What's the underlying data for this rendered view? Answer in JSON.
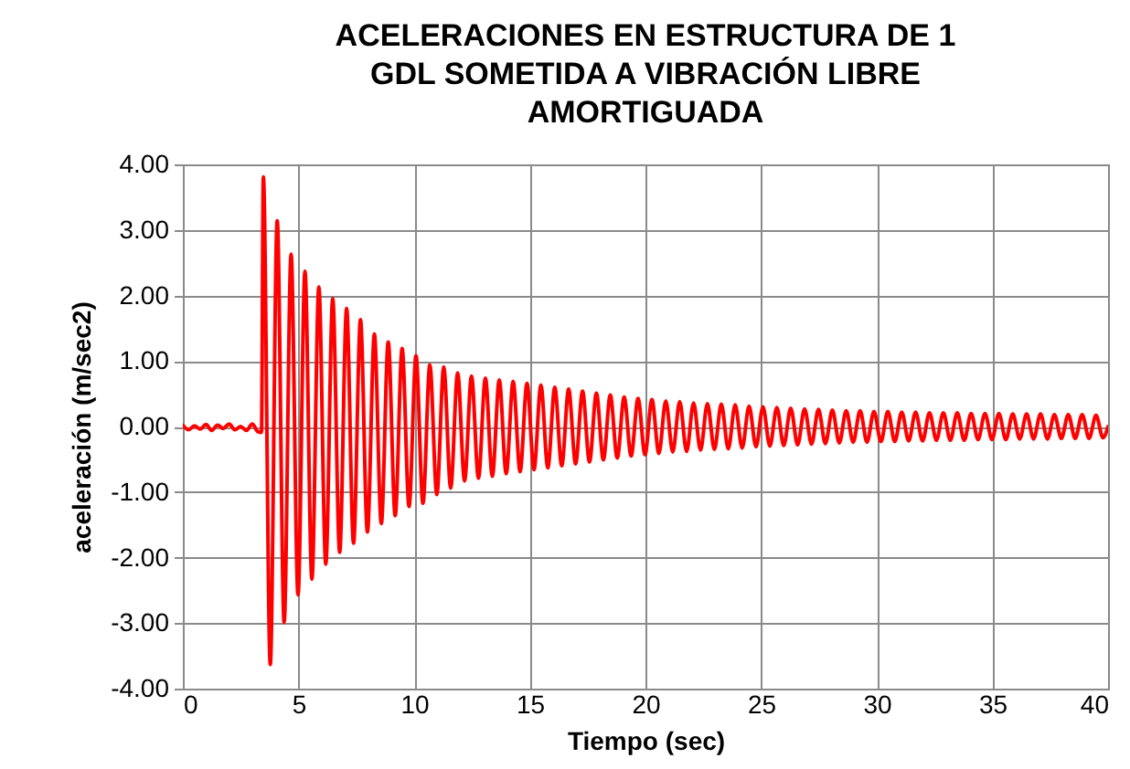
{
  "chart_data": {
    "type": "line",
    "title": "ACELERACIONES EN ESTRUCTURA DE 1 GDL SOMETIDA A VIBRACIÓN LIBRE AMORTIGUADA",
    "xlabel": "Tiempo (sec)",
    "ylabel": "aceleración (m/sec2)",
    "xlim": [
      0,
      40
    ],
    "xticks": [
      0,
      5,
      10,
      15,
      20,
      25,
      30,
      35,
      40
    ],
    "ylim": [
      -4,
      4
    ],
    "yticks": [
      {
        "value": -4,
        "label": "-4.00"
      },
      {
        "value": -3,
        "label": "-3.00"
      },
      {
        "value": -2,
        "label": "-2.00"
      },
      {
        "value": -1,
        "label": "-1.00"
      },
      {
        "value": 0,
        "label": "0.00"
      },
      {
        "value": 1,
        "label": "1.00"
      },
      {
        "value": 2,
        "label": "2.00"
      },
      {
        "value": 3,
        "label": "3.00"
      },
      {
        "value": 4,
        "label": "4.00"
      }
    ],
    "grid": true,
    "marker": "none",
    "line_style": "solid",
    "series": [
      {
        "color": "#ff0000",
        "x": [
          0,
          0.25,
          0.5,
          0.75,
          1,
          1.25,
          1.5,
          1.75,
          2,
          2.25,
          2.5,
          2.75,
          3,
          3.25,
          3.4,
          3.48,
          3.78,
          4.08,
          4.38,
          4.68,
          4.98,
          5.28,
          5.58,
          5.88,
          6.18,
          6.48,
          6.78,
          7.08,
          7.38,
          7.68,
          7.98,
          8.28,
          8.58,
          8.88,
          9.18,
          9.48,
          9.78,
          10.08,
          10.38,
          10.68,
          10.98,
          11.28,
          11.58,
          11.88,
          12.18,
          12.48,
          12.78,
          13.08,
          13.38,
          13.68,
          13.98,
          14.28,
          14.58,
          14.88,
          15.18,
          15.48,
          15.78,
          16.08,
          16.38,
          16.68,
          16.98,
          17.28,
          17.58,
          17.88,
          18.18,
          18.48,
          18.78,
          19.08,
          19.38,
          19.68,
          19.98,
          20.28,
          20.58,
          20.88,
          21.18,
          21.48,
          21.78,
          22.08,
          22.38,
          22.68,
          22.98,
          23.28,
          23.58,
          23.88,
          24.18,
          24.48,
          24.78,
          25.08,
          25.38,
          25.68,
          25.98,
          26.28,
          26.58,
          26.88,
          27.18,
          27.48,
          27.78,
          28.08,
          28.38,
          28.68,
          28.98,
          29.28,
          29.58,
          29.88,
          30.18,
          30.48,
          30.78,
          31.08,
          31.38,
          31.68,
          31.98,
          32.28,
          32.58,
          32.88,
          33.18,
          33.48,
          33.78,
          34.08,
          34.38,
          34.68,
          34.98,
          35.28,
          35.58,
          35.88,
          36.18,
          36.48,
          36.78,
          37.08,
          37.38,
          37.68,
          37.98,
          38.28,
          38.58,
          38.88,
          39.18,
          39.48,
          39.78,
          40
        ],
        "values": [
          0.02,
          -0.05,
          0.01,
          -0.04,
          0.03,
          -0.06,
          0.02,
          -0.03,
          0.04,
          -0.05,
          0.0,
          -0.06,
          0.04,
          -0.08,
          -0.09,
          3.81,
          -3.63,
          3.14,
          -2.99,
          2.63,
          -2.57,
          2.37,
          -2.33,
          2.13,
          -2.1,
          1.95,
          -1.92,
          1.8,
          -1.78,
          1.63,
          -1.61,
          1.41,
          -1.48,
          1.29,
          -1.36,
          1.19,
          -1.22,
          1.08,
          -1.17,
          0.94,
          -1.04,
          0.91,
          -0.94,
          0.82,
          -0.83,
          0.77,
          -0.79,
          0.74,
          -0.76,
          0.71,
          -0.72,
          0.69,
          -0.69,
          0.66,
          -0.66,
          0.63,
          -0.63,
          0.6,
          -0.6,
          0.57,
          -0.57,
          0.54,
          -0.54,
          0.51,
          -0.51,
          0.48,
          -0.48,
          0.45,
          -0.45,
          0.43,
          -0.43,
          0.41,
          -0.41,
          0.39,
          -0.39,
          0.38,
          -0.38,
          0.36,
          -0.36,
          0.35,
          -0.35,
          0.34,
          -0.34,
          0.33,
          -0.33,
          0.31,
          -0.31,
          0.3,
          -0.3,
          0.29,
          -0.29,
          0.28,
          -0.28,
          0.27,
          -0.27,
          0.26,
          -0.26,
          0.25,
          -0.25,
          0.24,
          -0.24,
          0.24,
          -0.24,
          0.23,
          -0.23,
          0.23,
          -0.23,
          0.22,
          -0.22,
          0.22,
          -0.22,
          0.21,
          -0.21,
          0.21,
          -0.21,
          0.21,
          -0.21,
          0.2,
          -0.2,
          0.2,
          -0.2,
          0.2,
          -0.2,
          0.19,
          -0.19,
          0.19,
          -0.19,
          0.19,
          -0.19,
          0.18,
          -0.18,
          0.18,
          -0.18,
          0.18,
          -0.18,
          0.17,
          -0.17,
          0.0
        ]
      }
    ]
  }
}
